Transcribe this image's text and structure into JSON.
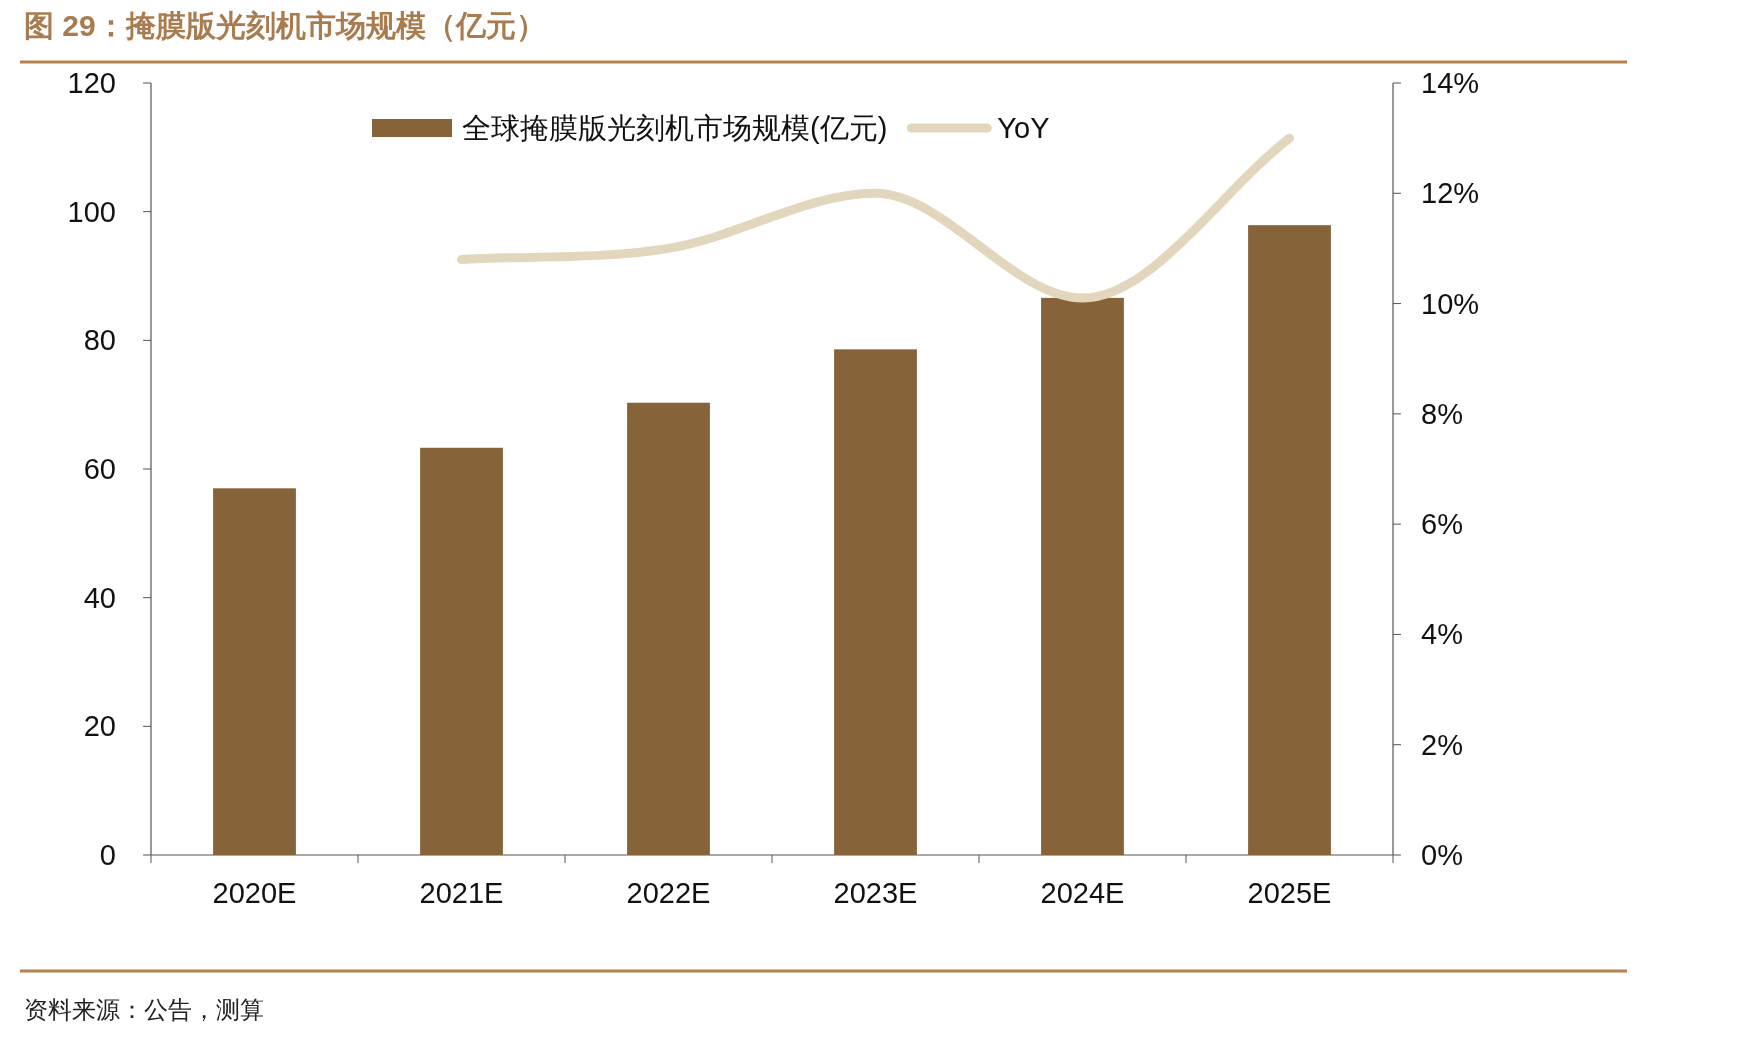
{
  "chart_data": {
    "type": "bar",
    "title": "图 29：掩膜版光刻机市场规模（亿元）",
    "categories": [
      "2020E",
      "2021E",
      "2022E",
      "2023E",
      "2024E",
      "2025E"
    ],
    "series": [
      {
        "name": "全球掩膜版光刻机市场规模(亿元)",
        "color": "#87633a",
        "values": [
          57.0,
          63.3,
          70.3,
          78.6,
          86.6,
          97.9
        ]
      },
      {
        "name": "YoY",
        "type": "line",
        "axis": "y2",
        "color": "#e2d6bd",
        "values": [
          null,
          10.8,
          11.0,
          12.0,
          10.1,
          13.0
        ]
      }
    ],
    "ylim": [
      0,
      120
    ],
    "yticks": [
      0,
      20,
      40,
      60,
      80,
      100,
      120
    ],
    "y2lim": [
      0,
      14
    ],
    "y2ticks": [
      {
        "value": 0,
        "label": "0%"
      },
      {
        "value": 2,
        "label": "2%"
      },
      {
        "value": 4,
        "label": "4%"
      },
      {
        "value": 6,
        "label": "6%"
      },
      {
        "value": 8,
        "label": "8%"
      },
      {
        "value": 10,
        "label": "10%"
      },
      {
        "value": 12,
        "label": "12%"
      },
      {
        "value": 14,
        "label": "14%"
      }
    ],
    "grid": false,
    "legend": "top",
    "annotations": [
      "资料来源：公告，测算"
    ]
  }
}
